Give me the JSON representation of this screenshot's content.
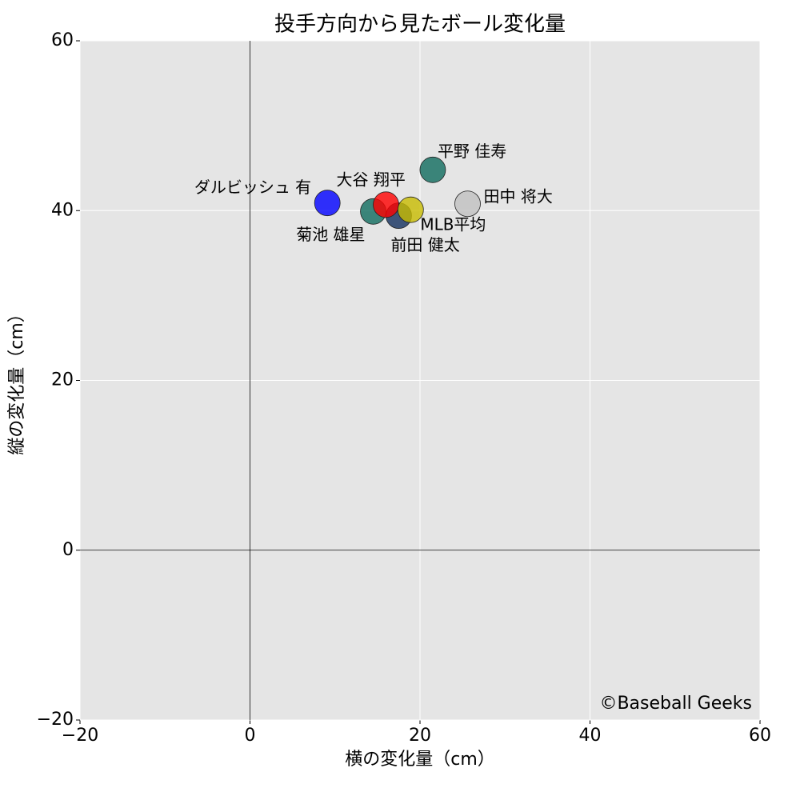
{
  "chart_data": {
    "type": "scatter",
    "title": "投手方向から見たボール変化量",
    "x_label": "横の変化量（cm）",
    "y_label": "縦の変化量（cm）",
    "annotation": "©Baseball Geeks",
    "xlim": [
      -20,
      60
    ],
    "ylim": [
      -20,
      60
    ],
    "xticks": [
      {
        "value": -20,
        "label": "−20"
      },
      0,
      20,
      40,
      60
    ],
    "yticks": [
      {
        "value": -20,
        "label": "−20"
      },
      0,
      20,
      40,
      60
    ],
    "grid": true,
    "points": [
      {
        "name": "ダルビッシュ 有",
        "x": 9.1,
        "y": 40.9,
        "color": "#0000ff"
      },
      {
        "name": "菊池 雄星",
        "x": 14.5,
        "y": 39.9,
        "color": "#0f6b5e"
      },
      {
        "name": "前田 健太",
        "x": 17.5,
        "y": 39.4,
        "color": "#13305e"
      },
      {
        "name": "大谷 翔平",
        "x": 16.0,
        "y": 40.7,
        "color": "#ff0000"
      },
      {
        "name": "MLB平均",
        "x": 18.9,
        "y": 40.1,
        "color": "#c8bc00"
      },
      {
        "name": "平野 佳寿",
        "x": 21.5,
        "y": 44.8,
        "color": "#0f6b5e"
      },
      {
        "name": "田中 将大",
        "x": 25.6,
        "y": 40.8,
        "color": "#c0c0c0"
      }
    ]
  }
}
